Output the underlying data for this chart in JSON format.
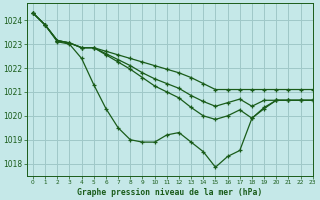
{
  "title": "Graphe pression niveau de la mer (hPa)",
  "background_color": "#c5e8e8",
  "grid_color": "#9fc8c8",
  "line_color": "#1a5c1a",
  "ylim": [
    1017.5,
    1024.7
  ],
  "xlim": [
    -0.5,
    23
  ],
  "yticks": [
    1018,
    1019,
    1020,
    1021,
    1022,
    1023,
    1024
  ],
  "xticks": [
    0,
    1,
    2,
    3,
    4,
    5,
    6,
    7,
    8,
    9,
    10,
    11,
    12,
    13,
    14,
    15,
    16,
    17,
    18,
    19,
    20,
    21,
    22,
    23
  ],
  "series": [
    {
      "data": [
        1024.3,
        1023.8,
        1023.1,
        1023.0,
        1022.4,
        1021.3,
        1020.3,
        1019.5,
        1019.0,
        1018.9,
        1018.9,
        1019.2,
        1019.3,
        1018.9,
        1018.5,
        1017.85,
        1018.3,
        1018.55,
        1019.9,
        1020.3,
        1020.65,
        1020.65,
        1020.65,
        1020.65
      ]
    },
    {
      "data": [
        1024.3,
        1023.8,
        1023.15,
        1023.05,
        1022.85,
        1022.85,
        1022.7,
        1022.55,
        1022.4,
        1022.25,
        1022.1,
        1021.95,
        1021.8,
        1021.6,
        1021.35,
        1021.1,
        1021.1,
        1021.1,
        1021.1,
        1021.1,
        1021.1,
        1021.1,
        1021.1,
        1021.1
      ]
    },
    {
      "data": [
        1024.3,
        1023.8,
        1023.15,
        1023.05,
        1022.85,
        1022.85,
        1022.6,
        1022.35,
        1022.1,
        1021.8,
        1021.55,
        1021.35,
        1021.15,
        1020.85,
        1020.6,
        1020.4,
        1020.55,
        1020.7,
        1020.4,
        1020.65,
        1020.65,
        1020.65,
        1020.65,
        1020.65
      ]
    },
    {
      "data": [
        1024.3,
        1023.8,
        1023.15,
        1023.05,
        1022.85,
        1022.85,
        1022.55,
        1022.25,
        1021.95,
        1021.6,
        1021.25,
        1021.0,
        1020.75,
        1020.35,
        1020.0,
        1019.85,
        1020.0,
        1020.25,
        1019.9,
        1020.35,
        1020.65,
        1020.65,
        1020.65,
        1020.65
      ]
    }
  ]
}
